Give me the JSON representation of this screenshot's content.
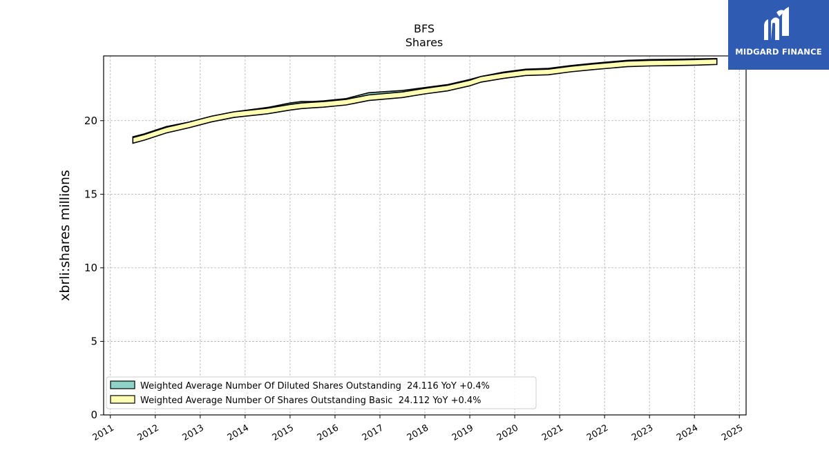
{
  "chart_data": {
    "type": "area",
    "title": "BFS",
    "subtitle": "Shares",
    "xlabel": "",
    "ylabel": "xbrli:shares millions",
    "xlim": [
      2010.85,
      2025.15
    ],
    "ylim": [
      0,
      24.4
    ],
    "y_ticks": [
      0,
      5,
      10,
      15,
      20
    ],
    "x_ticks": [
      "2011",
      "2012",
      "2013",
      "2014",
      "2015",
      "2016",
      "2017",
      "2018",
      "2019",
      "2020",
      "2021",
      "2022",
      "2023",
      "2024",
      "2025"
    ],
    "grid": true,
    "legend_position": "lower-left",
    "x": [
      2011.5,
      2011.75,
      2012.25,
      2012.75,
      2013.25,
      2013.75,
      2014.5,
      2015.0,
      2015.25,
      2015.5,
      2015.75,
      2016.25,
      2016.5,
      2016.75,
      2017.5,
      2018.0,
      2018.5,
      2019.0,
      2019.25,
      2019.75,
      2020.25,
      2020.75,
      2021.25,
      2021.75,
      2022.5,
      2023.0,
      2023.5,
      2024.0,
      2024.5
    ],
    "series": [
      {
        "name": "Weighted Average Number Of Diluted Shares Outstanding  24.116 YoY +0.4%",
        "color": "#8dd3c7",
        "values": [
          18.9,
          19.1,
          19.6,
          19.9,
          20.3,
          20.6,
          20.9,
          21.2,
          21.3,
          21.3,
          21.35,
          21.5,
          21.7,
          21.9,
          22.05,
          22.25,
          22.45,
          22.8,
          23.0,
          23.3,
          23.5,
          23.55,
          23.75,
          23.9,
          24.1,
          24.15,
          24.17,
          24.2,
          24.22
        ]
      },
      {
        "name": "Weighted Average Number Of Shares Outstanding Basic  24.112 YoY +0.4%",
        "color": "#ffffb3",
        "values": [
          18.85,
          19.05,
          19.55,
          19.9,
          20.3,
          20.6,
          20.85,
          21.1,
          21.2,
          21.25,
          21.3,
          21.45,
          21.6,
          21.75,
          21.95,
          22.2,
          22.4,
          22.75,
          23.0,
          23.25,
          23.45,
          23.5,
          23.7,
          23.85,
          24.05,
          24.1,
          24.12,
          24.15,
          24.2
        ]
      }
    ],
    "band_offset": 0.38
  },
  "logo": {
    "text": "MIDGARD FINANCE"
  }
}
